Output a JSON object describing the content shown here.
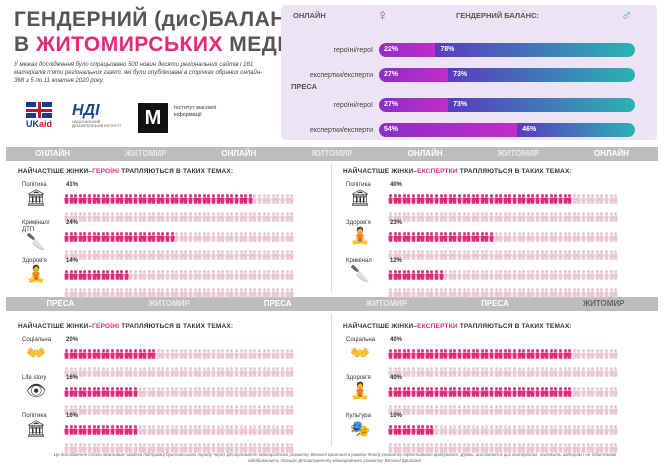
{
  "header": {
    "title_line1": "ГЕНДЕРНИЙ (дис)БАЛАНС",
    "title_line2_prefix": "В ",
    "title_line2_highlight": "ЖИТОМИРСЬКИХ",
    "title_line2_suffix": " МЕДІА",
    "intro": "У межах дослідження було опрацьовано 500 новин десяти регіональних сайтів і 181 матеріалів п'яти регіональних газет, які були опубліковані в стрічках обраних онлайн-ЗМІ з 5 по 11 жовтня 2020 року."
  },
  "logos": {
    "ukaid": "UK",
    "ukaid_accent": "aid",
    "ndi": "НДІ",
    "ndi_sub": "НАЦІОНАЛЬНИЙ ДЕМОКРАТИЧНИЙ ІНСТИТУТ",
    "imi_mark": "М",
    "imi_text": "Інститут масової інформації"
  },
  "balance": {
    "online_label": "ОНЛАЙН",
    "press_label": "ПРЕСА",
    "heading": "ГЕНДЕРНИЙ БАЛАНС:",
    "female_symbol": "♀",
    "male_symbol": "♂",
    "rows": [
      {
        "label": "героїні/герої",
        "female": 22,
        "male": 78,
        "female_text": "22%",
        "male_text": "78%"
      },
      {
        "label": "експертки/експерти",
        "female": 27,
        "male": 73,
        "female_text": "27%",
        "male_text": "73%"
      },
      {
        "label": "героїні/герої",
        "female": 27,
        "male": 73,
        "female_text": "27%",
        "male_text": "73%"
      },
      {
        "label": "експертки/експерти",
        "female": 54,
        "male": 46,
        "female_text": "54%",
        "male_text": "46%"
      }
    ],
    "colors": {
      "female": "#c32cc8",
      "male": "#2bb3b3"
    }
  },
  "bands": {
    "online": [
      "ОНЛАЙН",
      "ЖИТОМИР",
      "ОНЛАЙН",
      "ЖИТОМИР",
      "ОНЛАЙН",
      "ЖИТОМИР",
      "ОНЛАЙН"
    ],
    "press": [
      "ПРЕСА",
      "ЖИТОМИР",
      "ПРЕСА",
      "ЖИТОМИР",
      "ПРЕСА",
      "ЖИТОМИР"
    ]
  },
  "panels": {
    "title_prefix": "НАЙЧАСТІШЕ ЖІНКИ–",
    "title_suffix": " ТРАПЛЯЮТЬСЯ В ТАКИХ ТЕМАХ:",
    "heroines": "ГЕРОЇНІ",
    "experts": "ЕКСПЕРТКИ",
    "online_heroines": [
      {
        "label": "Політика",
        "pct": 41,
        "pct_text": "41%",
        "icon": "columns-icon",
        "glyph": "🏛"
      },
      {
        "label": "Кримінал/ ДТП",
        "pct": 24,
        "pct_text": "24%",
        "icon": "knife-icon",
        "glyph": "🔪"
      },
      {
        "label": "Здоров'я",
        "pct": 14,
        "pct_text": "14%",
        "icon": "meditation-icon",
        "glyph": "🧘"
      }
    ],
    "online_experts": [
      {
        "label": "Політика",
        "pct": 40,
        "pct_text": "40%",
        "icon": "columns-icon",
        "glyph": "🏛"
      },
      {
        "label": "Здоров'я",
        "pct": 23,
        "pct_text": "23%",
        "icon": "meditation-icon",
        "glyph": "🧘"
      },
      {
        "label": "Кримінал",
        "pct": 12,
        "pct_text": "12%",
        "icon": "knife-icon",
        "glyph": "🔪"
      }
    ],
    "press_heroines": [
      {
        "label": "Соціальна",
        "pct": 20,
        "pct_text": "20%",
        "icon": "hands-icon",
        "glyph": "👐"
      },
      {
        "label": "Life story",
        "pct": 16,
        "pct_text": "16%",
        "icon": "eye-icon",
        "glyph": "👁"
      },
      {
        "label": "Політика",
        "pct": 16,
        "pct_text": "16%",
        "icon": "columns-icon",
        "glyph": "🏛"
      }
    ],
    "press_experts": [
      {
        "label": "Соціальна",
        "pct": 40,
        "pct_text": "40%",
        "icon": "hands-icon",
        "glyph": "👐"
      },
      {
        "label": "Здоров'я",
        "pct": 40,
        "pct_text": "40%",
        "icon": "meditation-icon",
        "glyph": "🧘"
      },
      {
        "label": "Культура",
        "pct": 10,
        "pct_text": "10%",
        "icon": "masks-icon",
        "glyph": "🎭"
      }
    ],
    "colors": {
      "female": "#e4287a",
      "male": "#e8c8d4"
    }
  },
  "footer": "Це дослідження стало можливим завдяки підтримці британського народу через Департамент міжнародного розвитку Великої Британії в рамках Фонду розвитку ефективного врядування. Думки, висловлені в цих матеріалах, належать авторам і не обов'язково відображають позицію Департаменту міжнародного розвитку Великої Британії."
}
